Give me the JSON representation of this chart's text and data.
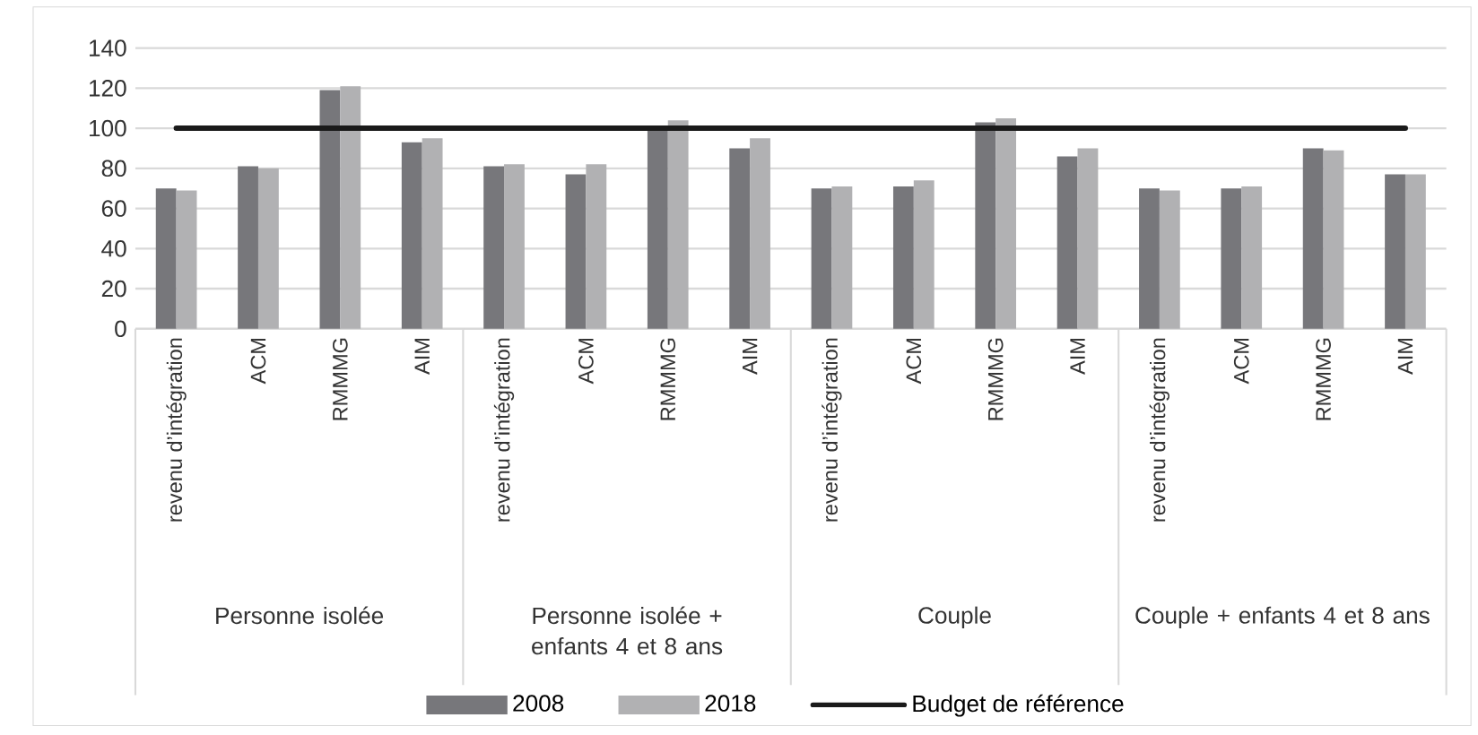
{
  "chart_data": {
    "type": "bar",
    "categories": [
      "revenu d’intégration",
      "ACM",
      "RMMMG",
      "AIM",
      "revenu d’intégration",
      "ACM",
      "RMMMG",
      "AIM",
      "revenu d’intégration",
      "ACM",
      "RMMMG",
      "AIM",
      "revenu d’intégration",
      "ACM",
      "RMMMG",
      "AIM"
    ],
    "annotations": [
      "Personne isolée",
      "Personne isolée + enfants 4 et 8 ans",
      "Couple",
      "Couple + enfants 4 et 8 ans"
    ],
    "series": [
      {
        "name": "2008",
        "color": "#77777b",
        "values": [
          70,
          81,
          119,
          93,
          81,
          77,
          101,
          90,
          70,
          71,
          103,
          86,
          70,
          70,
          90,
          77
        ]
      },
      {
        "name": "2018",
        "color": "#b1b1b3",
        "values": [
          69,
          80,
          121,
          95,
          82,
          82,
          104,
          95,
          71,
          74,
          105,
          90,
          69,
          71,
          89,
          77
        ]
      },
      {
        "name": "Budget de référence",
        "type": "line",
        "color": "#1a1a1a",
        "values": [
          100,
          100,
          100,
          100,
          100,
          100,
          100,
          100,
          100,
          100,
          100,
          100,
          100,
          100,
          100,
          100
        ]
      }
    ],
    "ylim": [
      0,
      140
    ],
    "yticks": [
      0,
      20,
      40,
      60,
      80,
      100,
      120,
      140
    ],
    "grid": "y",
    "legend": "bottom"
  }
}
